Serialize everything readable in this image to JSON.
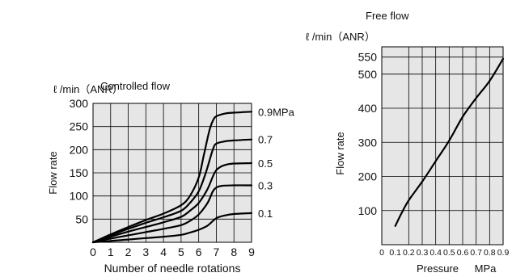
{
  "chart_data": [
    {
      "type": "line",
      "title": "Controlled flow",
      "unit_label": "ℓ /min（ANR）",
      "xlabel": "Number of needle rotations",
      "ylabel": "Flow rate",
      "xlim": [
        0,
        9
      ],
      "ylim": [
        0,
        300
      ],
      "grid": true,
      "x_ticks": [
        "0",
        "1",
        "2",
        "3",
        "4",
        "5",
        "6",
        "7",
        "8",
        "9"
      ],
      "y_ticks": [
        "50",
        "100",
        "150",
        "200",
        "250",
        "300"
      ],
      "series": [
        {
          "name": "0.9MPa",
          "x": [
            0,
            1,
            2,
            3,
            4,
            5,
            5.5,
            6,
            6.3,
            6.6,
            6.8,
            7,
            7.5,
            8,
            9
          ],
          "y": [
            0,
            17,
            33,
            48,
            62,
            80,
            100,
            140,
            190,
            240,
            262,
            272,
            278,
            280,
            282
          ]
        },
        {
          "name": "0.7",
          "x": [
            0,
            1,
            2,
            3,
            4,
            5,
            5.5,
            6,
            6.4,
            6.8,
            7,
            7.5,
            8,
            9
          ],
          "y": [
            0,
            15,
            29,
            42,
            54,
            68,
            85,
            110,
            150,
            200,
            213,
            218,
            220,
            222
          ]
        },
        {
          "name": "0.5",
          "x": [
            0,
            1,
            2,
            3,
            4,
            5,
            5.5,
            6,
            6.5,
            6.9,
            7.2,
            7.6,
            8,
            9
          ],
          "y": [
            0,
            12,
            23,
            33,
            43,
            55,
            68,
            85,
            115,
            150,
            162,
            168,
            170,
            171
          ]
        },
        {
          "name": "0.3",
          "x": [
            0,
            1,
            2,
            3,
            4,
            5,
            5.5,
            6,
            6.5,
            6.8,
            7,
            7.3,
            8,
            9
          ],
          "y": [
            0,
            8,
            15,
            22,
            29,
            37,
            46,
            60,
            85,
            110,
            118,
            122,
            123,
            123
          ]
        },
        {
          "name": "0.1",
          "x": [
            0,
            1,
            2,
            3,
            4,
            5,
            5.5,
            6,
            6.5,
            7,
            7.5,
            8,
            9
          ],
          "y": [
            0,
            3,
            6,
            9,
            12,
            16,
            21,
            27,
            36,
            52,
            58,
            61,
            63
          ]
        }
      ]
    },
    {
      "type": "line",
      "title": "Free flow",
      "unit_label": "ℓ /min（ANR）",
      "xlabel": "Pressure",
      "x_unit": "MPa",
      "ylabel": "Flow rate",
      "xlim": [
        0,
        0.9
      ],
      "ylim": [
        0,
        580
      ],
      "grid": true,
      "x_ticks": [
        "0",
        "0.1",
        "0.2",
        "0.3",
        "0.4",
        "0.5",
        "0.6",
        "0.7",
        "0.8",
        "0.9"
      ],
      "y_ticks": [
        "100",
        "200",
        "300",
        "400",
        "500",
        "550"
      ],
      "series": [
        {
          "name": "",
          "x": [
            0.1,
            0.15,
            0.2,
            0.3,
            0.4,
            0.5,
            0.6,
            0.7,
            0.8,
            0.9
          ],
          "y": [
            55,
            95,
            130,
            185,
            245,
            305,
            375,
            430,
            480,
            545
          ]
        }
      ]
    }
  ]
}
